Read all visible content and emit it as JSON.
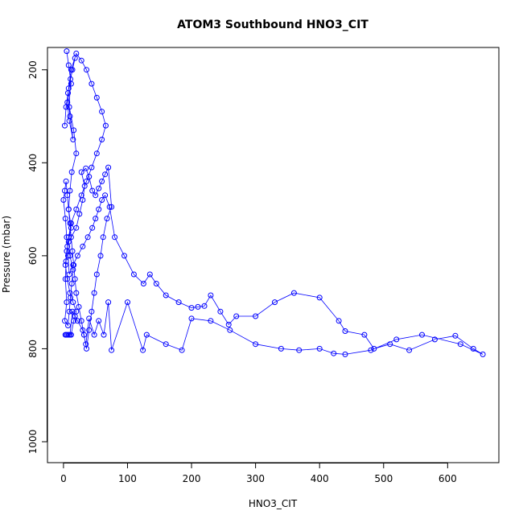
{
  "chart_data": {
    "type": "line",
    "title": "ATOM3 Southbound HNO3_CIT",
    "xlabel": "HNO3_CIT",
    "ylabel": "Pressure (mbar)",
    "xlim": [
      -25,
      680
    ],
    "ylim": [
      1045,
      152
    ],
    "y_reversed": true,
    "x_ticks": [
      0,
      100,
      200,
      300,
      400,
      500,
      600
    ],
    "y_ticks": [
      200,
      400,
      600,
      800,
      1000
    ],
    "grid": false,
    "legend": "none",
    "series_color": "#0000ff",
    "series": [
      {
        "name": "",
        "x": [
          5,
          8,
          12,
          6,
          9,
          15,
          10,
          7,
          14,
          18,
          11,
          9,
          16,
          20,
          13,
          10,
          8,
          12,
          6,
          4,
          3,
          5,
          2,
          7,
          9,
          11,
          13,
          15,
          10,
          8,
          20,
          25,
          30,
          33,
          28,
          35,
          40,
          45,
          50,
          55,
          60,
          65,
          70,
          75,
          68,
          62,
          58,
          52,
          48,
          44,
          40,
          36,
          32,
          28,
          24,
          20,
          18,
          16,
          14,
          12,
          10,
          8,
          6,
          4,
          2,
          0,
          3,
          5,
          7,
          9,
          15,
          22,
          30,
          38,
          45,
          50,
          55,
          60,
          65,
          72,
          80,
          95,
          110,
          125,
          135,
          145,
          160,
          180,
          200,
          210,
          220,
          230,
          245,
          258,
          270,
          300,
          330,
          360,
          400,
          430,
          440,
          470,
          485,
          510,
          540,
          580,
          612,
          640,
          655,
          620,
          560,
          520,
          480,
          440,
          422,
          400,
          368,
          340,
          300,
          260,
          230,
          200,
          185,
          160,
          130,
          124,
          100,
          75,
          70,
          63,
          55,
          48,
          40,
          35,
          30,
          22,
          18,
          14,
          10,
          6,
          3,
          4,
          8,
          12,
          16,
          20,
          15,
          10,
          6,
          3,
          5,
          8,
          12,
          20,
          28,
          36,
          44,
          52,
          60,
          66,
          60,
          52,
          44,
          36,
          28,
          20,
          12,
          8,
          4,
          2
        ],
        "y": [
          160,
          190,
          230,
          270,
          310,
          350,
          300,
          250,
          200,
          175,
          220,
          280,
          330,
          380,
          420,
          460,
          500,
          540,
          580,
          612,
          650,
          700,
          740,
          750,
          720,
          690,
          660,
          630,
          600,
          570,
          540,
          510,
          480,
          450,
          420,
          412,
          430,
          460,
          470,
          455,
          440,
          425,
          410,
          495,
          520,
          560,
          600,
          640,
          680,
          720,
          760,
          800,
          770,
          740,
          710,
          680,
          650,
          620,
          590,
          560,
          530,
          500,
          470,
          440,
          460,
          480,
          520,
          560,
          600,
          640,
          620,
          600,
          580,
          560,
          540,
          520,
          500,
          480,
          470,
          495,
          560,
          600,
          640,
          660,
          640,
          660,
          685,
          700,
          712,
          710,
          708,
          685,
          720,
          748,
          730,
          730,
          700,
          680,
          690,
          740,
          762,
          770,
          800,
          790,
          803,
          780,
          772,
          800,
          812,
          790,
          770,
          780,
          803,
          812,
          810,
          800,
          803,
          800,
          790,
          760,
          740,
          735,
          803,
          790,
          770,
          803,
          700,
          803,
          700,
          770,
          740,
          770,
          735,
          790,
          760,
          740,
          730,
          720,
          770,
          770,
          770,
          770,
          770,
          770,
          740,
          720,
          700,
          680,
          650,
          620,
          590,
          560,
          530,
          500,
          470,
          440,
          410,
          380,
          350,
          320,
          290,
          260,
          230,
          200,
          180,
          165,
          200,
          240,
          280,
          320
        ]
      }
    ]
  }
}
